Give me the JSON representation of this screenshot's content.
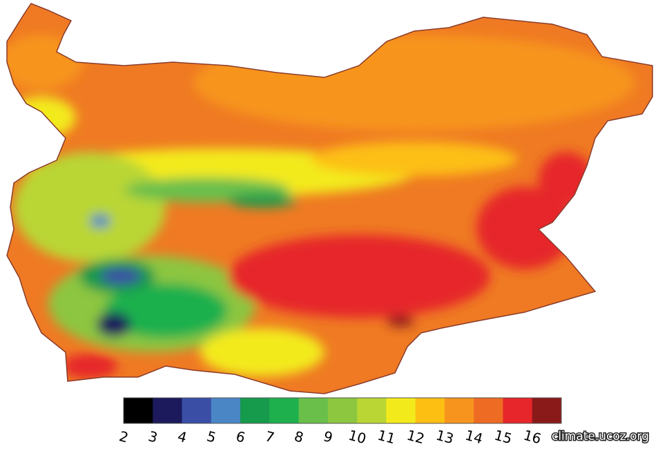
{
  "legend": {
    "items": [
      {
        "label": 2,
        "color": "#000000"
      },
      {
        "label": 3,
        "color": "#1c1a5c"
      },
      {
        "label": 4,
        "color": "#3a4ea6"
      },
      {
        "label": 5,
        "color": "#4a86c6"
      },
      {
        "label": 6,
        "color": "#169a4c"
      },
      {
        "label": 7,
        "color": "#1fb04e"
      },
      {
        "label": 8,
        "color": "#6abf4b"
      },
      {
        "label": 9,
        "color": "#8dc63f"
      },
      {
        "label": 10,
        "color": "#b9d635"
      },
      {
        "label": 11,
        "color": "#f3ea1c"
      },
      {
        "label": 12,
        "color": "#fdbf12"
      },
      {
        "label": 13,
        "color": "#f7941e"
      },
      {
        "label": 14,
        "color": "#ee6b23"
      },
      {
        "label": 15,
        "color": "#e6262a"
      },
      {
        "label": 16,
        "color": "#8a1a1a"
      }
    ]
  },
  "watermark": "climate.ucoz.org"
}
